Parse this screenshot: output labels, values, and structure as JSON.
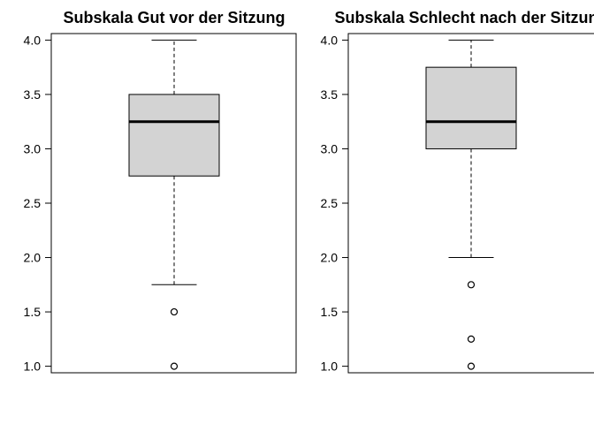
{
  "chart_data": [
    {
      "type": "boxplot",
      "title": "Subskala Gut vor der Sitzung",
      "ylim": [
        0.94,
        4.06
      ],
      "yticks": [
        1.0,
        1.5,
        2.0,
        2.5,
        3.0,
        3.5,
        4.0
      ],
      "ytick_labels": [
        "1.0",
        "1.5",
        "2.0",
        "2.5",
        "3.0",
        "3.5",
        "4.0"
      ],
      "box": {
        "whisker_low": 1.75,
        "q1": 2.75,
        "median": 3.25,
        "q3": 3.5,
        "whisker_high": 4.0
      },
      "outliers": [
        1.5,
        1.0
      ],
      "box_fill": "#d3d3d3"
    },
    {
      "type": "boxplot",
      "title": "Subskala Schlecht nach der Sitzung",
      "ylim": [
        0.94,
        4.06
      ],
      "yticks": [
        1.0,
        1.5,
        2.0,
        2.5,
        3.0,
        3.5,
        4.0
      ],
      "ytick_labels": [
        "1.0",
        "1.5",
        "2.0",
        "2.5",
        "3.0",
        "3.5",
        "4.0"
      ],
      "box": {
        "whisker_low": 2.0,
        "q1": 3.0,
        "median": 3.25,
        "q3": 3.75,
        "whisker_high": 4.0
      },
      "outliers": [
        1.75,
        1.25,
        1.0
      ],
      "box_fill": "#d3d3d3"
    }
  ]
}
